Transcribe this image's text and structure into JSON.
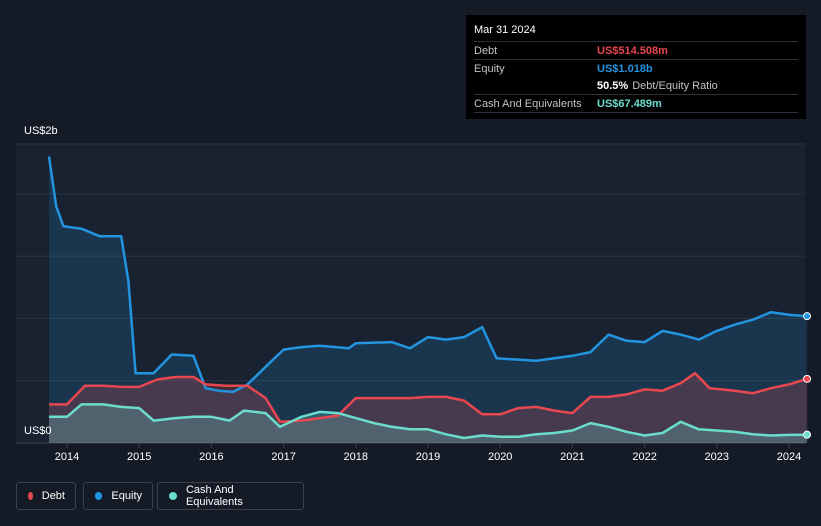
{
  "tooltip": {
    "date": "Mar 31 2024",
    "rows": {
      "debt": {
        "label": "Debt",
        "value": "US$514.508m",
        "color": "#e8474f"
      },
      "equity": {
        "label": "Equity",
        "value": "US$1.018b",
        "color": "#2394df"
      },
      "ratio": {
        "value": "50.5%",
        "label": "Debt/Equity Ratio"
      },
      "cash": {
        "label": "Cash And Equivalents",
        "value": "US$67.489m",
        "color": "#6cdccc"
      }
    }
  },
  "chart_data": {
    "type": "area",
    "ylabel_top": "US$2b",
    "ylabel_bottom": "US$0",
    "ylim": [
      0,
      2400
    ],
    "xlim": [
      2013.7,
      2024.25
    ],
    "x_ticks": [
      "2014",
      "2015",
      "2016",
      "2017",
      "2018",
      "2019",
      "2020",
      "2021",
      "2022",
      "2023",
      "2024"
    ],
    "grid": true,
    "legend_position": "bottom-left",
    "series": [
      {
        "name": "Equity",
        "color": "#2394df",
        "points": [
          [
            2013.75,
            2300
          ],
          [
            2013.85,
            1900
          ],
          [
            2013.95,
            1740
          ],
          [
            2014.2,
            1720
          ],
          [
            2014.45,
            1660
          ],
          [
            2014.75,
            1660
          ],
          [
            2014.85,
            1300
          ],
          [
            2014.95,
            560
          ],
          [
            2015.2,
            560
          ],
          [
            2015.45,
            710
          ],
          [
            2015.75,
            700
          ],
          [
            2015.92,
            440
          ],
          [
            2016.1,
            420
          ],
          [
            2016.3,
            410
          ],
          [
            2016.5,
            470
          ],
          [
            2016.8,
            640
          ],
          [
            2017.0,
            750
          ],
          [
            2017.25,
            770
          ],
          [
            2017.5,
            780
          ],
          [
            2017.9,
            760
          ],
          [
            2018.0,
            800
          ],
          [
            2018.5,
            810
          ],
          [
            2018.75,
            760
          ],
          [
            2019.0,
            850
          ],
          [
            2019.25,
            830
          ],
          [
            2019.5,
            850
          ],
          [
            2019.75,
            930
          ],
          [
            2019.95,
            680
          ],
          [
            2020.5,
            660
          ],
          [
            2021.0,
            700
          ],
          [
            2021.25,
            730
          ],
          [
            2021.5,
            870
          ],
          [
            2021.75,
            820
          ],
          [
            2022.0,
            810
          ],
          [
            2022.25,
            900
          ],
          [
            2022.5,
            870
          ],
          [
            2022.75,
            830
          ],
          [
            2023.0,
            900
          ],
          [
            2023.25,
            950
          ],
          [
            2023.5,
            990
          ],
          [
            2023.75,
            1050
          ],
          [
            2024.0,
            1030
          ],
          [
            2024.25,
            1018
          ]
        ]
      },
      {
        "name": "Debt",
        "color": "#e8474f",
        "points": [
          [
            2013.75,
            310
          ],
          [
            2014.0,
            310
          ],
          [
            2014.25,
            460
          ],
          [
            2014.5,
            460
          ],
          [
            2014.75,
            450
          ],
          [
            2015.0,
            450
          ],
          [
            2015.25,
            510
          ],
          [
            2015.5,
            530
          ],
          [
            2015.75,
            530
          ],
          [
            2015.92,
            470
          ],
          [
            2016.2,
            460
          ],
          [
            2016.5,
            460
          ],
          [
            2016.75,
            360
          ],
          [
            2016.95,
            170
          ],
          [
            2017.25,
            180
          ],
          [
            2017.5,
            200
          ],
          [
            2017.75,
            220
          ],
          [
            2018.0,
            360
          ],
          [
            2018.5,
            360
          ],
          [
            2018.75,
            360
          ],
          [
            2019.0,
            370
          ],
          [
            2019.25,
            370
          ],
          [
            2019.5,
            340
          ],
          [
            2019.75,
            230
          ],
          [
            2020.0,
            230
          ],
          [
            2020.25,
            280
          ],
          [
            2020.5,
            290
          ],
          [
            2020.75,
            260
          ],
          [
            2021.0,
            240
          ],
          [
            2021.25,
            370
          ],
          [
            2021.5,
            370
          ],
          [
            2021.75,
            390
          ],
          [
            2022.0,
            430
          ],
          [
            2022.25,
            420
          ],
          [
            2022.5,
            480
          ],
          [
            2022.7,
            560
          ],
          [
            2022.9,
            440
          ],
          [
            2023.25,
            420
          ],
          [
            2023.5,
            400
          ],
          [
            2023.75,
            440
          ],
          [
            2024.0,
            470
          ],
          [
            2024.25,
            515
          ]
        ]
      },
      {
        "name": "Cash And Equivalents",
        "color": "#6cdccc",
        "points": [
          [
            2013.75,
            210
          ],
          [
            2014.0,
            210
          ],
          [
            2014.2,
            310
          ],
          [
            2014.5,
            310
          ],
          [
            2014.75,
            290
          ],
          [
            2015.0,
            280
          ],
          [
            2015.2,
            180
          ],
          [
            2015.5,
            200
          ],
          [
            2015.75,
            210
          ],
          [
            2016.0,
            210
          ],
          [
            2016.25,
            180
          ],
          [
            2016.45,
            260
          ],
          [
            2016.75,
            240
          ],
          [
            2016.95,
            130
          ],
          [
            2017.25,
            210
          ],
          [
            2017.5,
            250
          ],
          [
            2017.75,
            240
          ],
          [
            2018.0,
            200
          ],
          [
            2018.25,
            160
          ],
          [
            2018.5,
            130
          ],
          [
            2018.75,
            110
          ],
          [
            2019.0,
            110
          ],
          [
            2019.25,
            70
          ],
          [
            2019.5,
            40
          ],
          [
            2019.75,
            60
          ],
          [
            2020.0,
            50
          ],
          [
            2020.25,
            50
          ],
          [
            2020.5,
            70
          ],
          [
            2020.75,
            80
          ],
          [
            2021.0,
            100
          ],
          [
            2021.25,
            160
          ],
          [
            2021.5,
            130
          ],
          [
            2021.75,
            90
          ],
          [
            2022.0,
            60
          ],
          [
            2022.25,
            80
          ],
          [
            2022.5,
            170
          ],
          [
            2022.75,
            110
          ],
          [
            2023.0,
            100
          ],
          [
            2023.25,
            90
          ],
          [
            2023.5,
            70
          ],
          [
            2023.75,
            60
          ],
          [
            2024.0,
            65
          ],
          [
            2024.25,
            67
          ]
        ]
      }
    ]
  },
  "legend": [
    {
      "label": "Debt",
      "color": "#e8474f"
    },
    {
      "label": "Equity",
      "color": "#2394df"
    },
    {
      "label": "Cash And Equivalents",
      "color": "#6cdccc"
    }
  ]
}
